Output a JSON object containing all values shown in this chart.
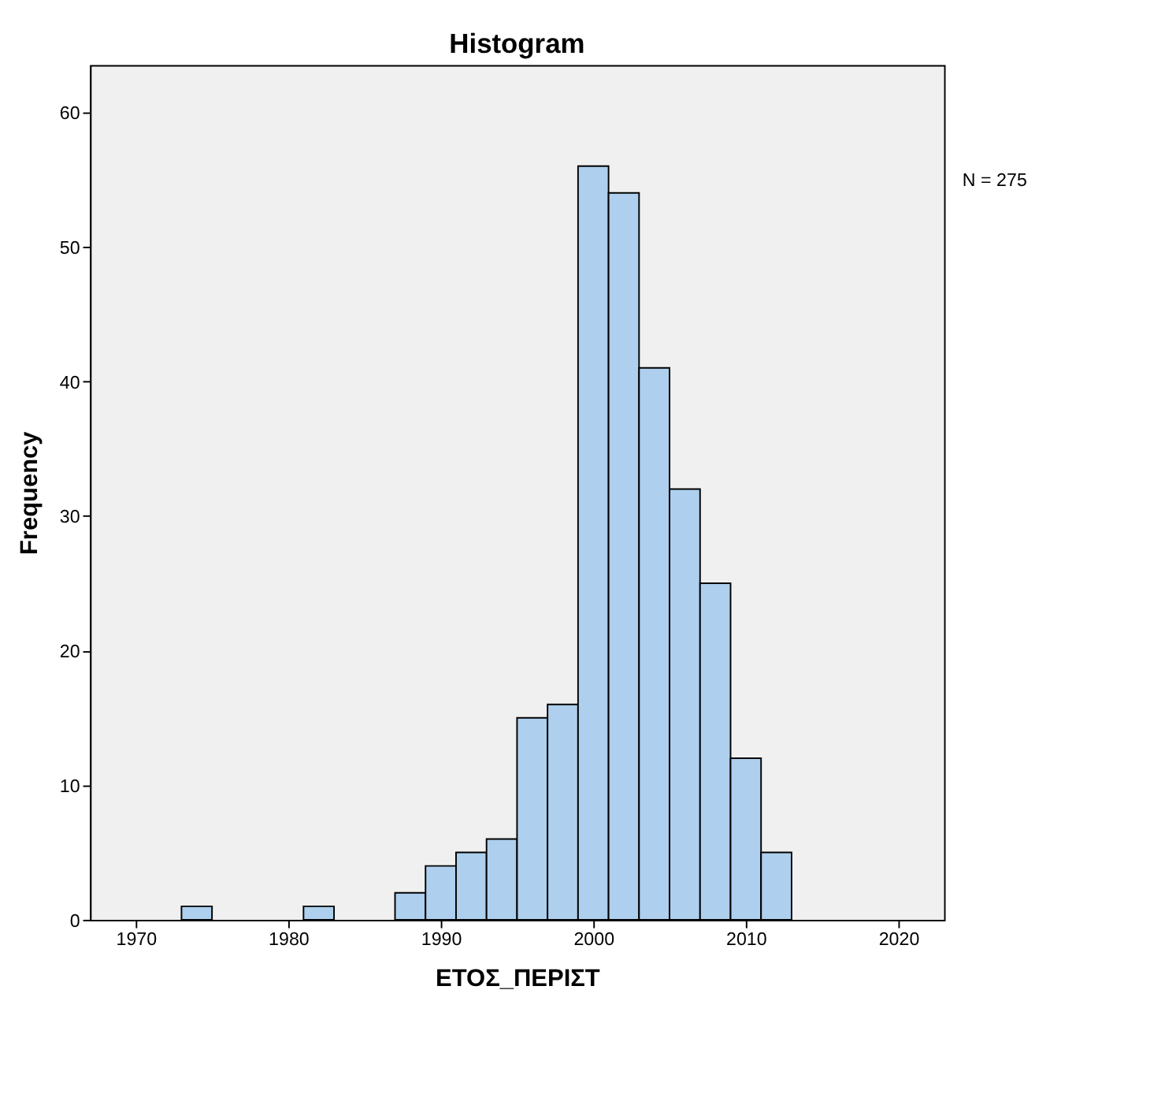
{
  "chart_data": {
    "type": "histogram",
    "title": "Histogram",
    "xlabel": "ΕΤΟΣ_ΠΕΡΙΣΤ",
    "ylabel": "Frequency",
    "bins": [
      1973,
      1975,
      1977,
      1979,
      1981,
      1983,
      1985,
      1987,
      1989,
      1991,
      1993,
      1995,
      1997,
      1999,
      2001,
      2003,
      2005,
      2007,
      2009,
      2011,
      2013
    ],
    "values": [
      1,
      0,
      0,
      0,
      1,
      0,
      0,
      2,
      4,
      5,
      6,
      15,
      16,
      56,
      54,
      41,
      32,
      25,
      12,
      5
    ],
    "color": "#aecfed",
    "xlim": [
      1967,
      2023
    ],
    "xticks": [
      {
        "value": 1970,
        "label": "1970"
      },
      {
        "value": 1980,
        "label": "1980"
      },
      {
        "value": 1990,
        "label": "1990"
      },
      {
        "value": 2000,
        "label": "2000"
      },
      {
        "value": 2010,
        "label": "2010"
      },
      {
        "value": 2020,
        "label": "2020"
      }
    ],
    "ylim": [
      0,
      63.5
    ],
    "yticks": [
      0,
      10,
      20,
      30,
      40,
      50,
      60
    ],
    "grid": false,
    "annotations": [
      "N = 275"
    ]
  }
}
